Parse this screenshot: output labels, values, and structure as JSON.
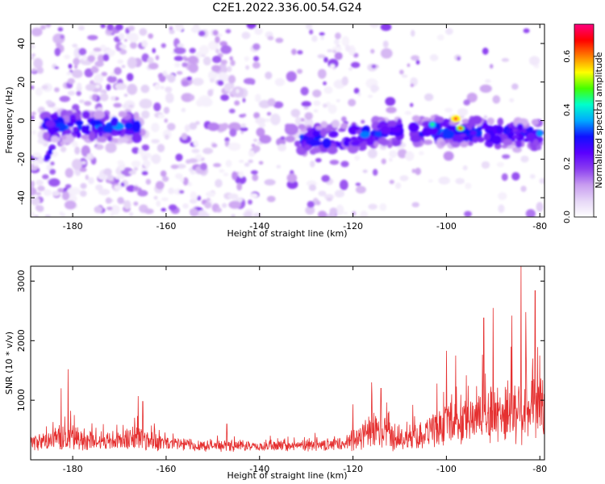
{
  "figure": {
    "title": "C2E1.2022.336.00.54.G24"
  },
  "chart_data": [
    {
      "type": "heatmap",
      "title": "C2E1.2022.336.00.54.G24",
      "xlabel": "Height of straight line (km)",
      "ylabel": "Frequency (Hz)",
      "xlim": [
        -189,
        -79
      ],
      "ylim": [
        -50,
        50
      ],
      "xticks": [
        -180,
        -160,
        -140,
        -120,
        -100,
        -80
      ],
      "yticks": [
        -40,
        -20,
        0,
        20,
        40
      ],
      "colorbar": {
        "label": "Normalized spectral amplitude",
        "range": [
          0,
          0.72
        ],
        "ticks": [
          0.0,
          0.2,
          0.4,
          0.6
        ],
        "tick_labels": [
          "0.0",
          "0.2",
          "0.4",
          "0.6"
        ],
        "colormap": [
          "#ffffff",
          "#e6d7f7",
          "#c89cf0",
          "#8a3df0",
          "#5a00ff",
          "#1010ff",
          "#00aaff",
          "#00ffcc",
          "#44ff00",
          "#ffff00",
          "#ff8000",
          "#ff0000",
          "#ff0080"
        ]
      },
      "signal_band": {
        "segments": [
          {
            "x": [
              -186,
              -166
            ],
            "center_hz": [
              -3,
              -3
            ]
          },
          {
            "x": [
              -131,
              -121
            ],
            "center_hz": [
              -10,
              -8
            ]
          },
          {
            "x": [
              -120,
              -110
            ],
            "center_hz": [
              -8,
              -5
            ]
          },
          {
            "x": [
              -107,
              -80
            ],
            "center_hz": [
              -5,
              -7
            ]
          }
        ],
        "tail_at_start": {
          "x": [
            -186,
            -184
          ],
          "hz": [
            -22,
            -12
          ]
        },
        "peak_points": [
          {
            "x": -98,
            "hz": 1,
            "value": 0.68
          },
          {
            "x": -97,
            "hz": -4,
            "value": 0.62
          },
          {
            "x": -103,
            "hz": -2,
            "value": 0.45
          }
        ]
      },
      "grid": false,
      "legend": "none"
    },
    {
      "type": "line",
      "xlabel": "Height of straight line (km)",
      "ylabel": "SNR (10 * v/v)",
      "xlim": [
        -189,
        -79
      ],
      "ylim": [
        0,
        3250
      ],
      "xticks": [
        -180,
        -160,
        -140,
        -120,
        -100,
        -80
      ],
      "yticks": [
        1000,
        2000,
        3000
      ],
      "color": "#e53030",
      "envelope": {
        "x": [
          -189,
          -185,
          -182,
          -180,
          -178,
          -175,
          -170,
          -166,
          -164,
          -160,
          -150,
          -140,
          -130,
          -122,
          -120,
          -118,
          -115,
          -112,
          -110,
          -105,
          -102,
          -100,
          -98,
          -95,
          -92,
          -90,
          -88,
          -85,
          -83,
          -80,
          -79
        ],
        "baseline": [
          250,
          280,
          300,
          310,
          290,
          270,
          280,
          300,
          280,
          240,
          210,
          200,
          210,
          230,
          280,
          340,
          380,
          340,
          310,
          380,
          430,
          500,
          520,
          560,
          600,
          620,
          650,
          680,
          700,
          720,
          720
        ],
        "amplitude": [
          250,
          320,
          420,
          500,
          380,
          300,
          320,
          500,
          360,
          260,
          190,
          150,
          180,
          210,
          380,
          480,
          620,
          520,
          400,
          520,
          580,
          720,
          700,
          800,
          900,
          1000,
          1050,
          1150,
          1100,
          1000,
          1000
        ]
      },
      "spikes": [
        {
          "x": -181,
          "y": 1520
        },
        {
          "x": -182.5,
          "y": 1200
        },
        {
          "x": -166,
          "y": 1070
        },
        {
          "x": -165,
          "y": 980
        },
        {
          "x": -147,
          "y": 600
        },
        {
          "x": -120,
          "y": 930
        },
        {
          "x": -116,
          "y": 1300
        },
        {
          "x": -114,
          "y": 1200
        },
        {
          "x": -102,
          "y": 1280
        },
        {
          "x": -100,
          "y": 1830
        },
        {
          "x": -98,
          "y": 1750
        },
        {
          "x": -92,
          "y": 2380
        },
        {
          "x": -90,
          "y": 2550
        },
        {
          "x": -86,
          "y": 2420
        },
        {
          "x": -84,
          "y": 3250
        },
        {
          "x": -83,
          "y": 2480
        },
        {
          "x": -81,
          "y": 2840
        },
        {
          "x": -80,
          "y": 1750
        }
      ],
      "grid": false,
      "legend": "none"
    }
  ]
}
